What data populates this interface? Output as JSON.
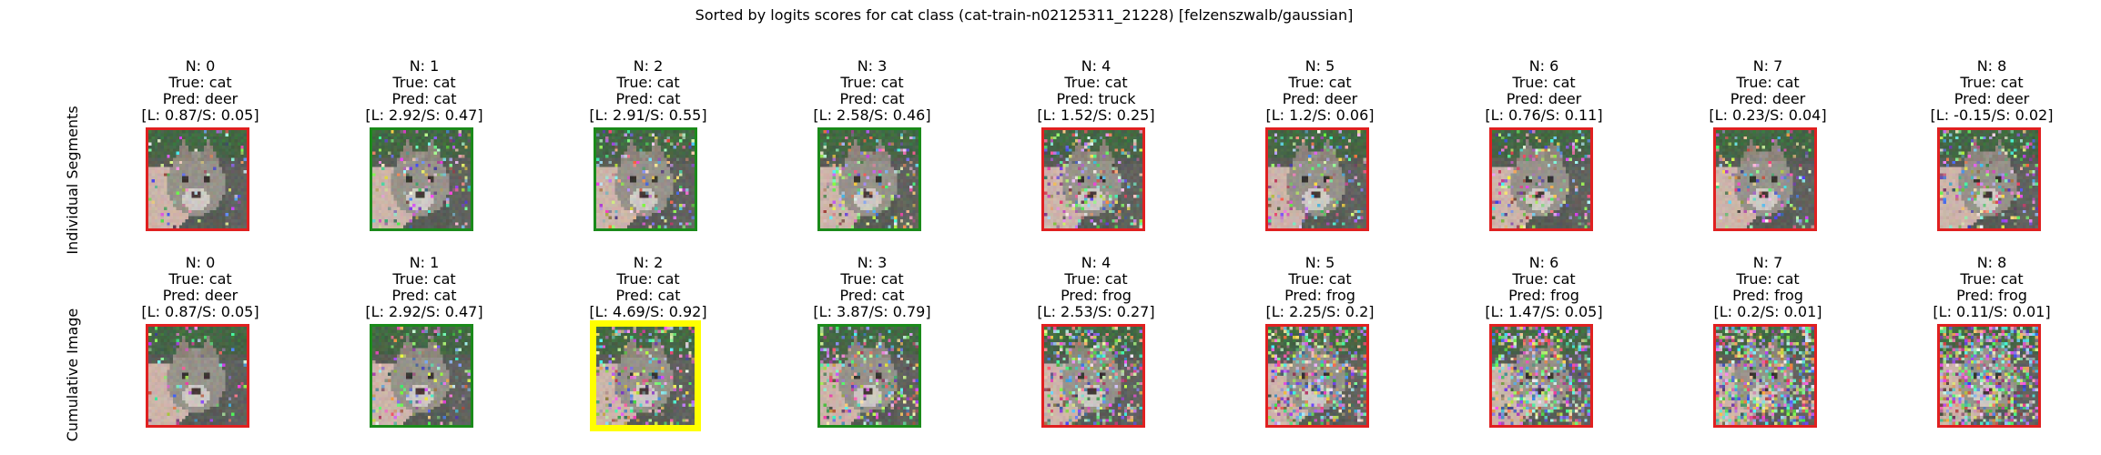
{
  "title": "Sorted by logits scores for cat class (cat-train-n02125311_21228) [felzenszwalb/gaussian]",
  "colors": {
    "correct": "#1a8a1a",
    "wrong": "#e02020",
    "best": "#ffff00"
  },
  "rows": [
    {
      "label": "Individual Segments",
      "panels": [
        {
          "n": "N: 0",
          "true": "True: cat",
          "pred": "Pred: deer",
          "scores": "[L: 0.87/S: 0.05]",
          "status": "wrong",
          "noise": 0.06
        },
        {
          "n": "N: 1",
          "true": "True: cat",
          "pred": "Pred: cat",
          "scores": "[L: 2.92/S: 0.47]",
          "status": "correct",
          "noise": 0.14
        },
        {
          "n": "N: 2",
          "true": "True: cat",
          "pred": "Pred: cat",
          "scores": "[L: 2.91/S: 0.55]",
          "status": "correct",
          "noise": 0.14
        },
        {
          "n": "N: 3",
          "true": "True: cat",
          "pred": "Pred: cat",
          "scores": "[L: 2.58/S: 0.46]",
          "status": "correct",
          "noise": 0.16
        },
        {
          "n": "N: 4",
          "true": "True: cat",
          "pred": "Pred: truck",
          "scores": "[L: 1.52/S: 0.25]",
          "status": "wrong",
          "noise": 0.22
        },
        {
          "n": "N: 5",
          "true": "True: cat",
          "pred": "Pred: deer",
          "scores": "[L: 1.2/S: 0.06]",
          "status": "wrong",
          "noise": 0.16
        },
        {
          "n": "N: 6",
          "true": "True: cat",
          "pred": "Pred: deer",
          "scores": "[L: 0.76/S: 0.11]",
          "status": "wrong",
          "noise": 0.16
        },
        {
          "n": "N: 7",
          "true": "True: cat",
          "pred": "Pred: deer",
          "scores": "[L: 0.23/S: 0.04]",
          "status": "wrong",
          "noise": 0.16
        },
        {
          "n": "N: 8",
          "true": "True: cat",
          "pred": "Pred: deer",
          "scores": "[L: -0.15/S: 0.02]",
          "status": "wrong",
          "noise": 0.18
        }
      ]
    },
    {
      "label": "Cumulative Image",
      "panels": [
        {
          "n": "N: 0",
          "true": "True: cat",
          "pred": "Pred: deer",
          "scores": "[L: 0.87/S: 0.05]",
          "status": "wrong",
          "noise": 0.06
        },
        {
          "n": "N: 1",
          "true": "True: cat",
          "pred": "Pred: cat",
          "scores": "[L: 2.92/S: 0.47]",
          "status": "correct",
          "noise": 0.14
        },
        {
          "n": "N: 2",
          "true": "True: cat",
          "pred": "Pred: cat",
          "scores": "[L: 4.69/S: 0.92]",
          "status": "best",
          "noise": 0.2
        },
        {
          "n": "N: 3",
          "true": "True: cat",
          "pred": "Pred: cat",
          "scores": "[L: 3.87/S: 0.79]",
          "status": "correct",
          "noise": 0.26
        },
        {
          "n": "N: 4",
          "true": "True: cat",
          "pred": "Pred: frog",
          "scores": "[L: 2.53/S: 0.27]",
          "status": "wrong",
          "noise": 0.34
        },
        {
          "n": "N: 5",
          "true": "True: cat",
          "pred": "Pred: frog",
          "scores": "[L: 2.25/S: 0.2]",
          "status": "wrong",
          "noise": 0.4
        },
        {
          "n": "N: 6",
          "true": "True: cat",
          "pred": "Pred: frog",
          "scores": "[L: 1.47/S: 0.05]",
          "status": "wrong",
          "noise": 0.46
        },
        {
          "n": "N: 7",
          "true": "True: cat",
          "pred": "Pred: frog",
          "scores": "[L: 0.2/S: 0.01]",
          "status": "wrong",
          "noise": 0.52
        },
        {
          "n": "N: 8",
          "true": "True: cat",
          "pred": "Pred: frog",
          "scores": "[L: 0.11/S: 0.01]",
          "status": "wrong",
          "noise": 0.58
        }
      ]
    }
  ]
}
